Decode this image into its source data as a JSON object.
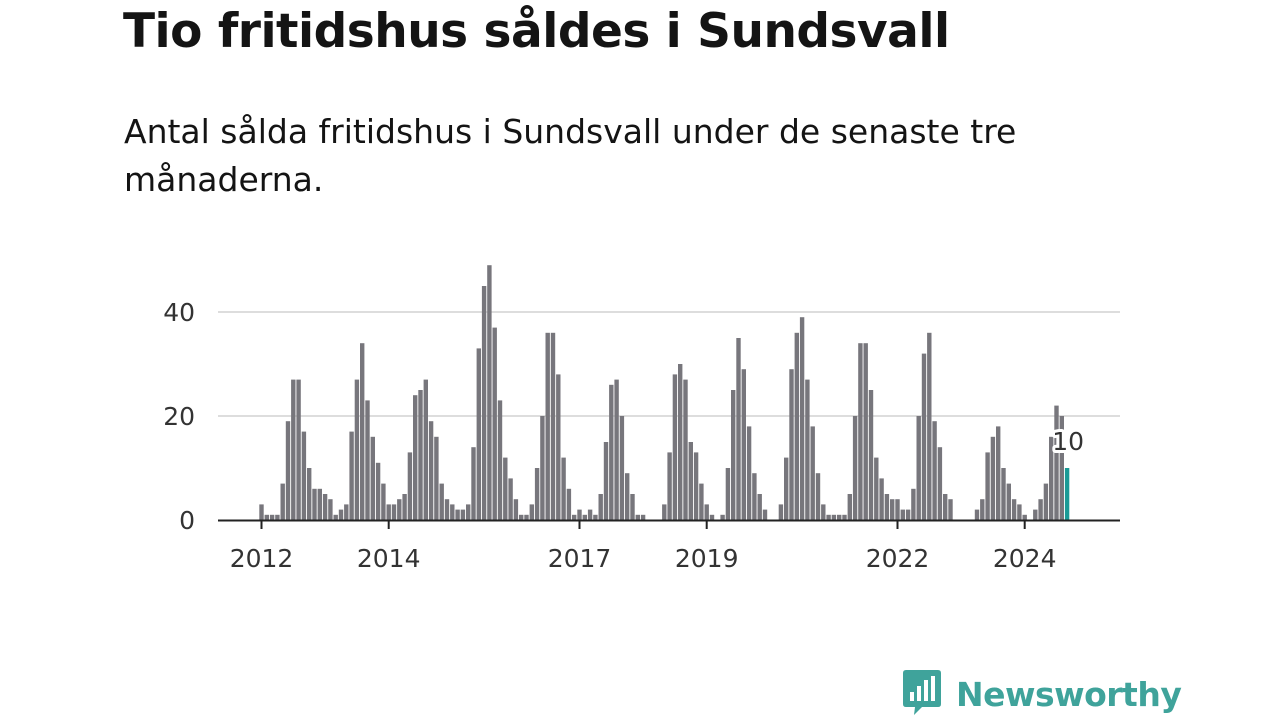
{
  "header": {
    "title": "Tio fritidshus såldes i Sundsvall",
    "subtitle": "Antal sålda fritidshus i Sundsvall under de senaste tre månaderna."
  },
  "brand": {
    "name": "Newsworthy",
    "icon": "newsworthy-logo-icon",
    "color": "#3fa39b"
  },
  "colors": {
    "bar": "#77767c",
    "highlight": "#1a9a96",
    "grid": "#dddddd",
    "axis": "#222222"
  },
  "chart_data": {
    "type": "bar",
    "title": "Tio fritidshus såldes i Sundsvall",
    "subtitle": "Antal sålda fritidshus i Sundsvall under de senaste tre månaderna.",
    "xlabel": "",
    "ylabel": "",
    "ylim": [
      0,
      50
    ],
    "yticks": [
      0,
      20,
      40
    ],
    "xticks": [
      "2012",
      "2014",
      "2017",
      "2019",
      "2022",
      "2024"
    ],
    "x_start": "2012-01",
    "frequency": "monthly",
    "grid": true,
    "legend": "none",
    "values": [
      3,
      1,
      1,
      1,
      7,
      19,
      27,
      27,
      17,
      10,
      6,
      6,
      5,
      4,
      1,
      2,
      3,
      17,
      27,
      34,
      23,
      16,
      11,
      7,
      3,
      3,
      4,
      5,
      13,
      24,
      25,
      27,
      19,
      16,
      7,
      4,
      3,
      2,
      2,
      3,
      14,
      33,
      45,
      49,
      37,
      23,
      12,
      8,
      4,
      1,
      1,
      3,
      10,
      20,
      36,
      36,
      28,
      12,
      6,
      1,
      2,
      1,
      2,
      1,
      5,
      15,
      26,
      27,
      20,
      9,
      5,
      1,
      1,
      0,
      0,
      0,
      3,
      13,
      28,
      30,
      27,
      15,
      13,
      7,
      3,
      1,
      0,
      1,
      10,
      25,
      35,
      29,
      18,
      9,
      5,
      2,
      0,
      0,
      3,
      12,
      29,
      36,
      39,
      27,
      18,
      9,
      3,
      1,
      1,
      1,
      1,
      5,
      20,
      34,
      34,
      25,
      12,
      8,
      5,
      4,
      4,
      2,
      2,
      6,
      20,
      32,
      36,
      19,
      14,
      5,
      4,
      0,
      0,
      0,
      0,
      2,
      4,
      13,
      16,
      18,
      10,
      7,
      4,
      3,
      1,
      0,
      2,
      4,
      7,
      16,
      22,
      20,
      10
    ],
    "annotation": {
      "label": "10",
      "value": 10,
      "highlight": "last"
    }
  }
}
